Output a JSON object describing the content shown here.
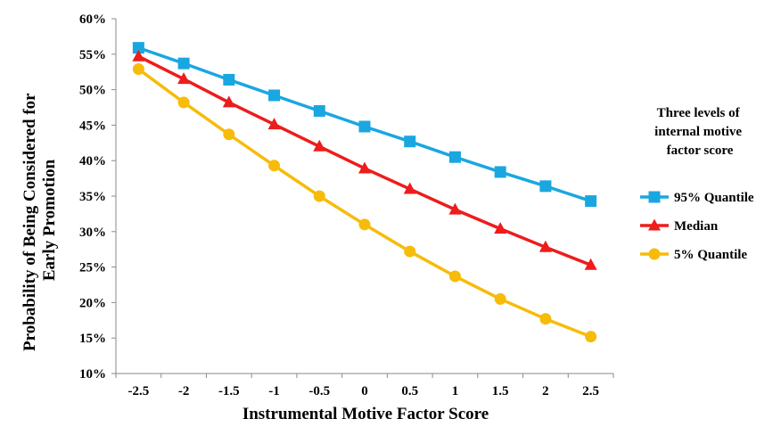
{
  "chart_data": {
    "type": "line",
    "xlabel": "Instrumental Motive Factor Score",
    "ylabel_lines": [
      "Probability of Being Considered for",
      "Early Promotion"
    ],
    "x": [
      -2.5,
      -2,
      -1.5,
      -1,
      -0.5,
      0,
      0.5,
      1,
      1.5,
      2,
      2.5
    ],
    "x_tick_labels": [
      "-2.5",
      "-2",
      "-1.5",
      "-1",
      "-0.5",
      "0",
      "0.5",
      "1",
      "1.5",
      "2",
      "2.5"
    ],
    "ylim": [
      10,
      60
    ],
    "y_ticks": [
      10,
      15,
      20,
      25,
      30,
      35,
      40,
      45,
      50,
      55,
      60
    ],
    "y_tick_labels": [
      "10%",
      "15%",
      "20%",
      "25%",
      "30%",
      "35%",
      "40%",
      "45%",
      "50%",
      "55%",
      "60%"
    ],
    "grid": false,
    "legend": {
      "position": "right",
      "title_lines": [
        "Three levels of",
        "internal motive",
        "factor score"
      ]
    },
    "series": [
      {
        "name": "95% Quantile",
        "color": "#1AA7E0",
        "marker": "square",
        "values": [
          55.9,
          53.7,
          51.4,
          49.2,
          47.0,
          44.8,
          42.7,
          40.5,
          38.4,
          36.4,
          34.3
        ]
      },
      {
        "name": "Median",
        "color": "#EE1C1C",
        "marker": "triangle",
        "values": [
          54.7,
          51.5,
          48.2,
          45.1,
          42.0,
          38.9,
          36.0,
          33.1,
          30.4,
          27.8,
          25.3
        ]
      },
      {
        "name": "5% Quantile",
        "color": "#F7BB0A",
        "marker": "circle",
        "values": [
          52.9,
          48.2,
          43.7,
          39.3,
          35.0,
          31.0,
          27.2,
          23.7,
          20.5,
          17.7,
          15.2
        ]
      }
    ]
  }
}
